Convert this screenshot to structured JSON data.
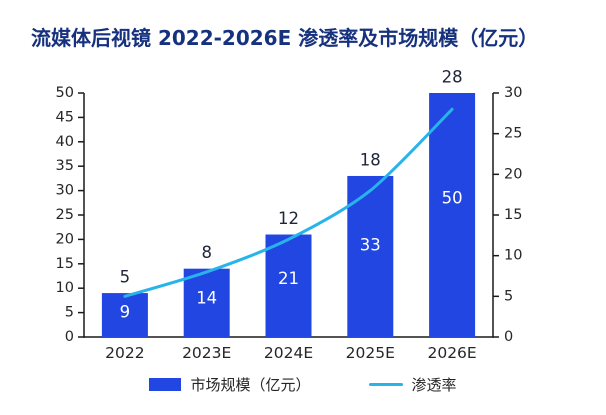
{
  "title": "流媒体后视镜 2022-2026E 渗透率及市场规模（亿元）",
  "chart_data": {
    "type": "bar",
    "subtype": "bar-line-combo",
    "title": "流媒体后视镜 2022-2026E 渗透率及市场规模（亿元）",
    "categories": [
      "2022",
      "2023E",
      "2024E",
      "2025E",
      "2026E"
    ],
    "series": [
      {
        "name": "市场规模（亿元）",
        "type": "bar",
        "y_axis": "left",
        "values": [
          9,
          14,
          21,
          33,
          50
        ],
        "color": "#2246E1",
        "value_label_color": "#FFFFFF"
      },
      {
        "name": "渗透率",
        "type": "line",
        "y_axis": "right",
        "values": [
          5,
          8,
          12,
          18,
          28
        ],
        "color": "#27B4EA",
        "value_label_color": "#20263A"
      }
    ],
    "axes": {
      "left": {
        "min": 0,
        "max": 50,
        "step": 5
      },
      "right": {
        "min": 0,
        "max": 30,
        "step": 5
      }
    },
    "grid": false,
    "legend_position": "bottom",
    "colors": {
      "title": "#16317D",
      "axis_text": "#262626",
      "axis_line": "#1A1A1A",
      "background": "#FFFFFF"
    }
  }
}
